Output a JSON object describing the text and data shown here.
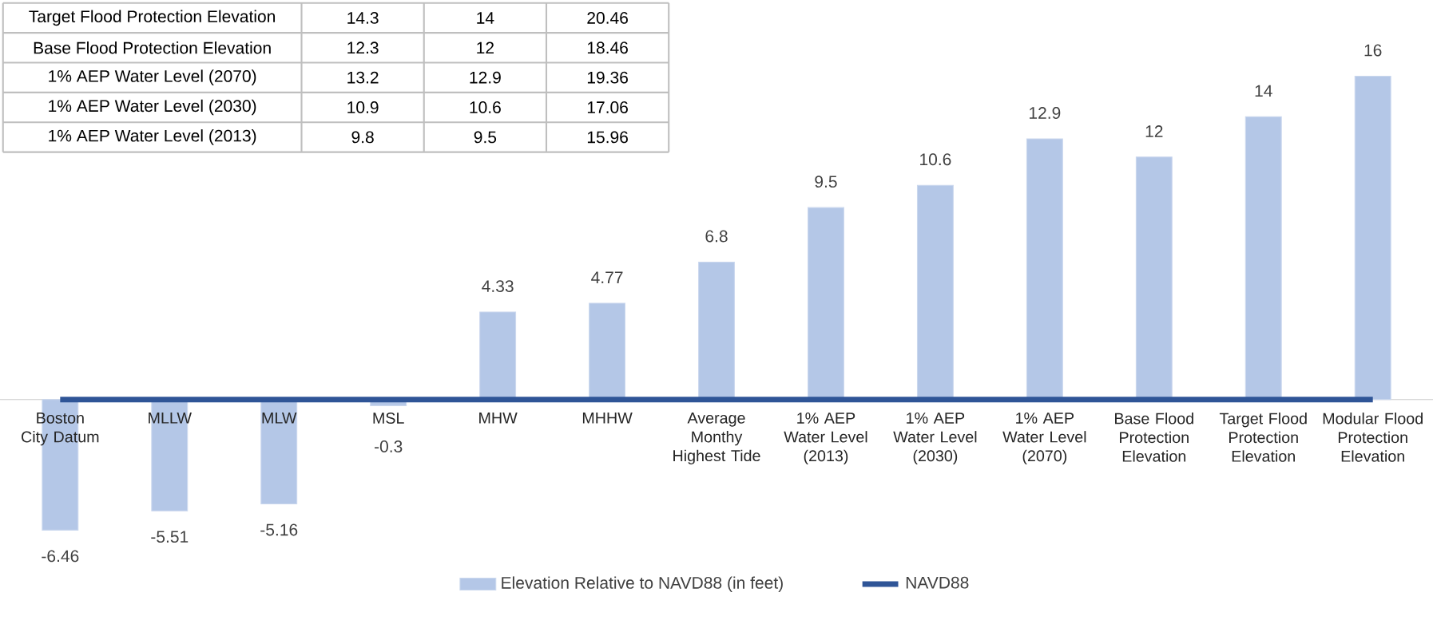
{
  "chart_data": [
    {
      "type": "bar",
      "categories": [
        "Boston City Datum",
        "MLLW",
        "MLW",
        "MSL",
        "MHW",
        "MHHW",
        "Average Monthy Highest Tide",
        "1% AEP Water Level (2013)",
        "1% AEP Water Level (2030)",
        "1% AEP Water Level (2070)",
        "Base Flood Protection Elevation",
        "Target Flood Protection Elevation",
        "Modular Flood Protection Elevation"
      ],
      "series": [
        {
          "name": "Elevation Relative to NAVD88 (in feet)",
          "type": "bar",
          "color": "#b4c7e7",
          "values": [
            -6.46,
            -5.51,
            -5.16,
            -0.3,
            4.33,
            4.77,
            6.8,
            9.5,
            10.6,
            12.9,
            12,
            14,
            16
          ],
          "value_labels": [
            "-6.46",
            "-5.51",
            "-5.16",
            "-0.3",
            "4.33",
            "4.77",
            "6.8",
            "9.5",
            "10.6",
            "12.9",
            "12",
            "14",
            "16"
          ]
        },
        {
          "name": "NAVD88",
          "type": "line",
          "color": "#2f5597",
          "values": [
            0,
            0,
            0,
            0,
            0,
            0,
            0,
            0,
            0,
            0,
            0,
            0,
            0
          ]
        }
      ],
      "legend": "bottom"
    },
    {
      "type": "other",
      "annotations": [
        "Target Flood Protection Elevation",
        "14.3",
        "14",
        "20.46",
        "Base Flood Protection Elevation",
        "12.3",
        "12",
        "18.46",
        "1% AEP Water Level (2070)",
        "13.2",
        "12.9",
        "19.36",
        "1% AEP Water Level (2030)",
        "10.9",
        "10.6",
        "17.06",
        "1% AEP Water Level (2013)",
        "9.8",
        "9.5",
        "15.96"
      ]
    }
  ]
}
